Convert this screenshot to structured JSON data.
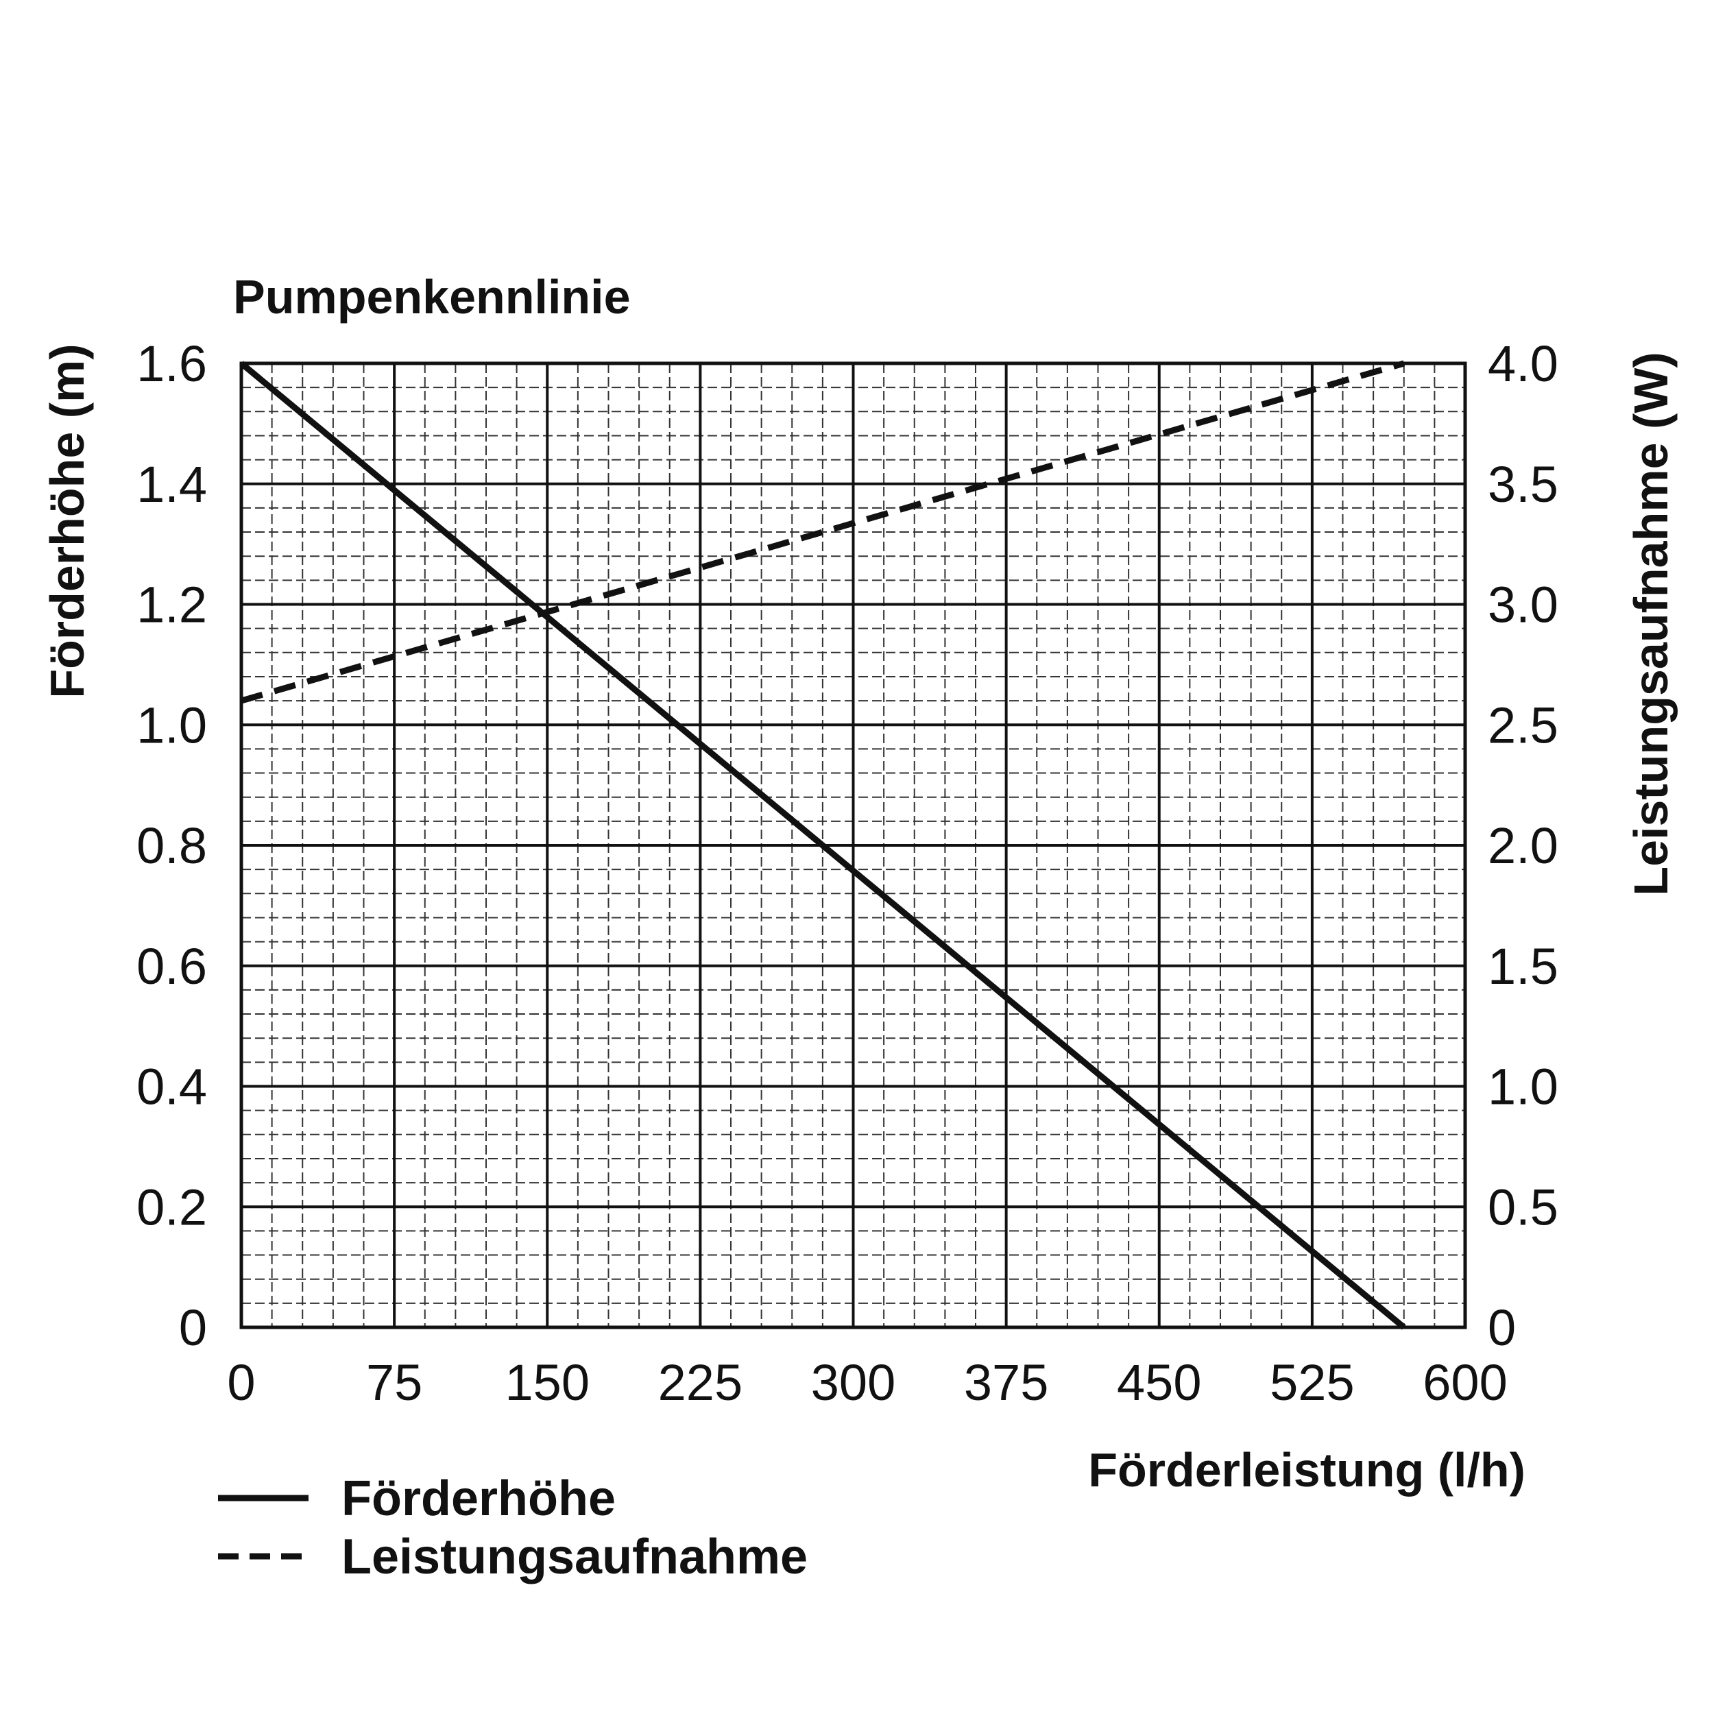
{
  "chart_data": {
    "type": "line",
    "title": "Pumpenkennlinie",
    "xlabel": "Förderleistung (l/h)",
    "ylabel_left": "Förderhöhe (m)",
    "ylabel_right": "Leistungsaufnahme (W)",
    "xlim": [
      0,
      600
    ],
    "ylim_left": [
      0,
      1.6
    ],
    "ylim_right": [
      0,
      4.0
    ],
    "x_ticks": [
      "0",
      "75",
      "150",
      "225",
      "300",
      "375",
      "450",
      "525",
      "600"
    ],
    "y_ticks_left": [
      "0",
      "0.2",
      "0.4",
      "0.6",
      "0.8",
      "1.0",
      "1.2",
      "1.4",
      "1.6"
    ],
    "y_ticks_right": [
      "0",
      "0.5",
      "1.0",
      "1.5",
      "2.0",
      "2.5",
      "3.0",
      "3.5",
      "4.0"
    ],
    "grid": true,
    "legend_position": "bottom-left",
    "series": [
      {
        "name": "Förderhöhe",
        "axis": "left",
        "style": "solid",
        "color": "#111111",
        "points": [
          [
            0,
            1.6
          ],
          [
            570,
            0
          ]
        ]
      },
      {
        "name": "Leistungsaufnahme",
        "axis": "right",
        "style": "dashed",
        "color": "#111111",
        "points": [
          [
            0,
            2.6
          ],
          [
            570,
            4.0
          ]
        ]
      }
    ]
  }
}
